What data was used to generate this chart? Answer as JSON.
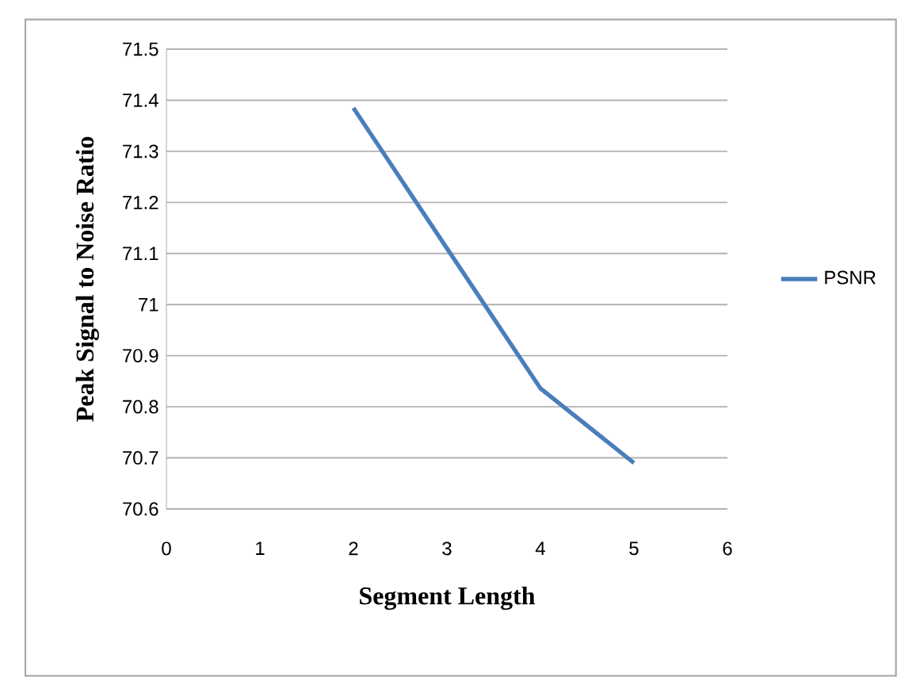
{
  "chart_data": {
    "type": "line",
    "xlabel": "Segment Length",
    "ylabel": "Peak Signal to Noise Ratio",
    "x": [
      2,
      3,
      4,
      5
    ],
    "series": [
      {
        "name": "PSNR",
        "color": "#4a7ebb",
        "values": [
          71.385,
          71.11,
          70.836,
          70.69
        ]
      }
    ],
    "xlim": [
      0,
      6
    ],
    "xticks": [
      0,
      1,
      2,
      3,
      4,
      5,
      6
    ],
    "ylim": [
      70.6,
      71.5
    ],
    "yticks": [
      70.6,
      70.7,
      70.8,
      70.9,
      71,
      71.1,
      71.2,
      71.3,
      71.4,
      71.5
    ],
    "grid": "y",
    "legend": "right",
    "marker": "none",
    "line_style": "solid"
  }
}
